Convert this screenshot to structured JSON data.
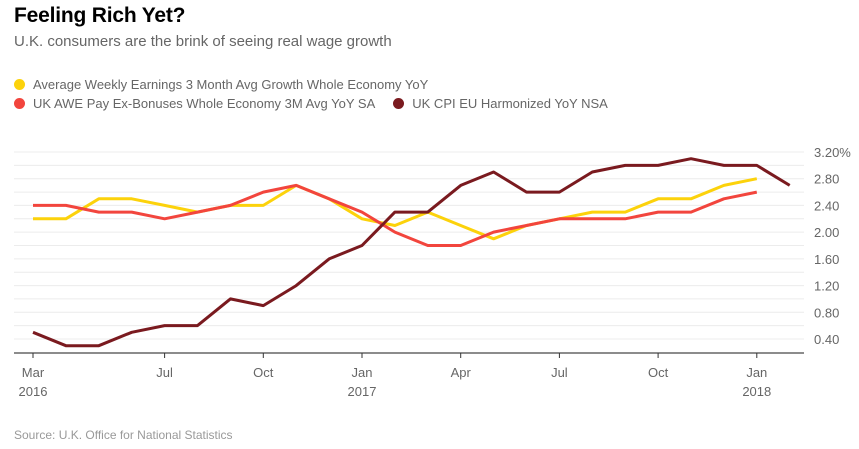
{
  "header": {
    "title": "Feeling Rich Yet?",
    "subtitle": "U.K. consumers are the brink of seeing real wage growth"
  },
  "source": "Source: U.K. Office for National Statistics",
  "chart_data": {
    "type": "line",
    "title": "Feeling Rich Yet?",
    "subtitle": "U.K. consumers are the brink of seeing real wage growth",
    "xlabel": "",
    "ylabel": "",
    "ylim": [
      0.3,
      3.3
    ],
    "y_ticks": [
      0.4,
      0.8,
      1.2,
      1.6,
      2.0,
      2.4,
      2.8,
      3.2
    ],
    "y_tick_labels": [
      "0.40",
      "0.80",
      "1.20",
      "1.60",
      "2.00",
      "2.40",
      "2.80",
      "3.20%"
    ],
    "grid": true,
    "legend_position": "top-left",
    "x": [
      "2016-03",
      "2016-04",
      "2016-05",
      "2016-06",
      "2016-07",
      "2016-08",
      "2016-09",
      "2016-10",
      "2016-11",
      "2016-12",
      "2017-01",
      "2017-02",
      "2017-03",
      "2017-04",
      "2017-05",
      "2017-06",
      "2017-07",
      "2017-08",
      "2017-09",
      "2017-10",
      "2017-11",
      "2017-12",
      "2018-01",
      "2018-02"
    ],
    "x_ticks": [
      {
        "index": 0,
        "label": "Mar",
        "year": "2016"
      },
      {
        "index": 4,
        "label": "Jul",
        "year": ""
      },
      {
        "index": 7,
        "label": "Oct",
        "year": ""
      },
      {
        "index": 10,
        "label": "Jan",
        "year": "2017"
      },
      {
        "index": 13,
        "label": "Apr",
        "year": ""
      },
      {
        "index": 16,
        "label": "Jul",
        "year": ""
      },
      {
        "index": 19,
        "label": "Oct",
        "year": ""
      },
      {
        "index": 22,
        "label": "Jan",
        "year": "2018"
      }
    ],
    "series": [
      {
        "name": "Average Weekly Earnings 3 Month Avg Growth Whole Economy YoY",
        "color": "#fcd20b",
        "values": [
          2.2,
          2.2,
          2.5,
          2.5,
          2.4,
          2.3,
          2.4,
          2.4,
          2.7,
          2.5,
          2.2,
          2.1,
          2.3,
          2.1,
          1.9,
          2.1,
          2.2,
          2.3,
          2.3,
          2.5,
          2.5,
          2.7,
          2.8
        ]
      },
      {
        "name": "UK AWE Pay Ex-Bonuses Whole Economy 3M Avg YoY SA",
        "color": "#f2453d",
        "values": [
          2.4,
          2.4,
          2.3,
          2.3,
          2.2,
          2.3,
          2.4,
          2.6,
          2.7,
          2.5,
          2.3,
          2.0,
          1.8,
          1.8,
          2.0,
          2.1,
          2.2,
          2.2,
          2.2,
          2.3,
          2.3,
          2.5,
          2.6
        ]
      },
      {
        "name": "UK CPI EU Harmonized YoY NSA",
        "color": "#7a1a1f",
        "values": [
          0.5,
          0.3,
          0.3,
          0.5,
          0.6,
          0.6,
          1.0,
          0.9,
          1.2,
          1.6,
          1.8,
          2.3,
          2.3,
          2.7,
          2.9,
          2.6,
          2.6,
          2.9,
          3.0,
          3.0,
          3.1,
          3.0,
          3.0,
          2.7
        ]
      }
    ]
  }
}
